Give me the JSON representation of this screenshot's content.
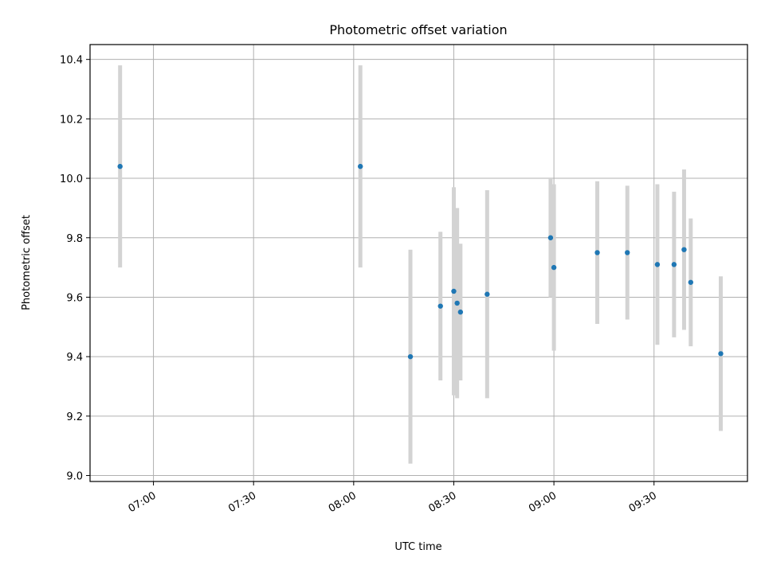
{
  "chart_data": {
    "type": "scatter",
    "title": "Photometric offset variation",
    "xlabel": "UTC time",
    "ylabel": "Photometric offset",
    "xlim": [
      "06:41",
      "09:58"
    ],
    "ylim": [
      8.98,
      10.45
    ],
    "x_ticks": [
      "07:00",
      "07:30",
      "08:00",
      "08:30",
      "09:00",
      "09:30"
    ],
    "y_ticks": [
      9.0,
      9.2,
      9.4,
      9.6,
      9.8,
      10.0,
      10.2,
      10.4
    ],
    "grid": true,
    "colors": {
      "point": "#1f77b4",
      "errorbar": "#d3d3d3",
      "grid": "#b0b0b0"
    },
    "points": [
      {
        "time": "06:50",
        "y": 10.04,
        "err": 0.34
      },
      {
        "time": "08:02",
        "y": 10.04,
        "err": 0.34
      },
      {
        "time": "08:17",
        "y": 9.4,
        "err": 0.36
      },
      {
        "time": "08:26",
        "y": 9.57,
        "err": 0.25
      },
      {
        "time": "08:30",
        "y": 9.62,
        "err": 0.35
      },
      {
        "time": "08:31",
        "y": 9.58,
        "err": 0.32
      },
      {
        "time": "08:32",
        "y": 9.55,
        "err": 0.23
      },
      {
        "time": "08:40",
        "y": 9.61,
        "err": 0.35
      },
      {
        "time": "08:59",
        "y": 9.8,
        "err": 0.2
      },
      {
        "time": "09:00",
        "y": 9.7,
        "err": 0.28
      },
      {
        "time": "09:13",
        "y": 9.75,
        "err": 0.24
      },
      {
        "time": "09:22",
        "y": 9.75,
        "err": 0.225
      },
      {
        "time": "09:31",
        "y": 9.71,
        "err": 0.27
      },
      {
        "time": "09:36",
        "y": 9.71,
        "err": 0.245
      },
      {
        "time": "09:39",
        "y": 9.76,
        "err": 0.27
      },
      {
        "time": "09:41",
        "y": 9.65,
        "err": 0.215
      },
      {
        "time": "09:50",
        "y": 9.41,
        "err": 0.26
      }
    ]
  }
}
